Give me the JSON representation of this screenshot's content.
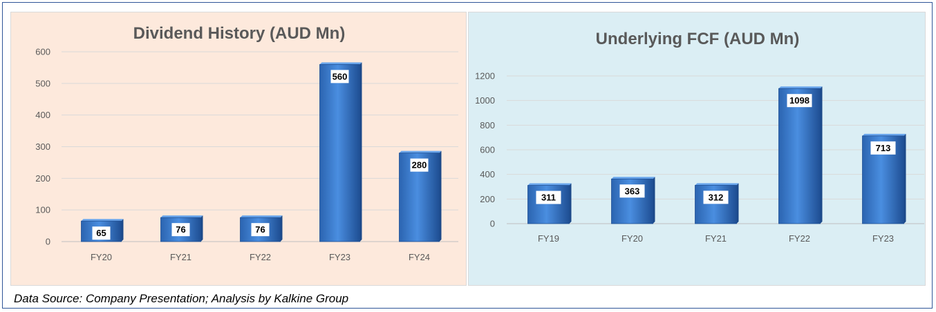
{
  "source_note": "Data Source: Company Presentation; Analysis by Kalkine Group",
  "colors": {
    "left_panel_bg": "#fde9dc",
    "right_panel_bg": "#dbeef4",
    "bar": "#3f7fd0",
    "border": "#2f5597"
  },
  "chart_data": [
    {
      "type": "bar",
      "title": "Dividend History (AUD Mn)",
      "categories": [
        "FY20",
        "FY21",
        "FY22",
        "FY23",
        "FY24"
      ],
      "values": [
        65,
        76,
        76,
        560,
        280
      ],
      "yticks": [
        0,
        100,
        200,
        300,
        400,
        500,
        600
      ],
      "ylim": [
        0,
        600
      ],
      "grid": true,
      "legend": "none"
    },
    {
      "type": "bar",
      "title": "Underlying FCF (AUD Mn)",
      "categories": [
        "FY19",
        "FY20",
        "FY21",
        "FY22",
        "FY23"
      ],
      "values": [
        311,
        363,
        312,
        1098,
        713
      ],
      "yticks": [
        0,
        200,
        400,
        600,
        800,
        1000,
        1200
      ],
      "ylim": [
        0,
        1200
      ],
      "grid": true,
      "legend": "none"
    }
  ]
}
